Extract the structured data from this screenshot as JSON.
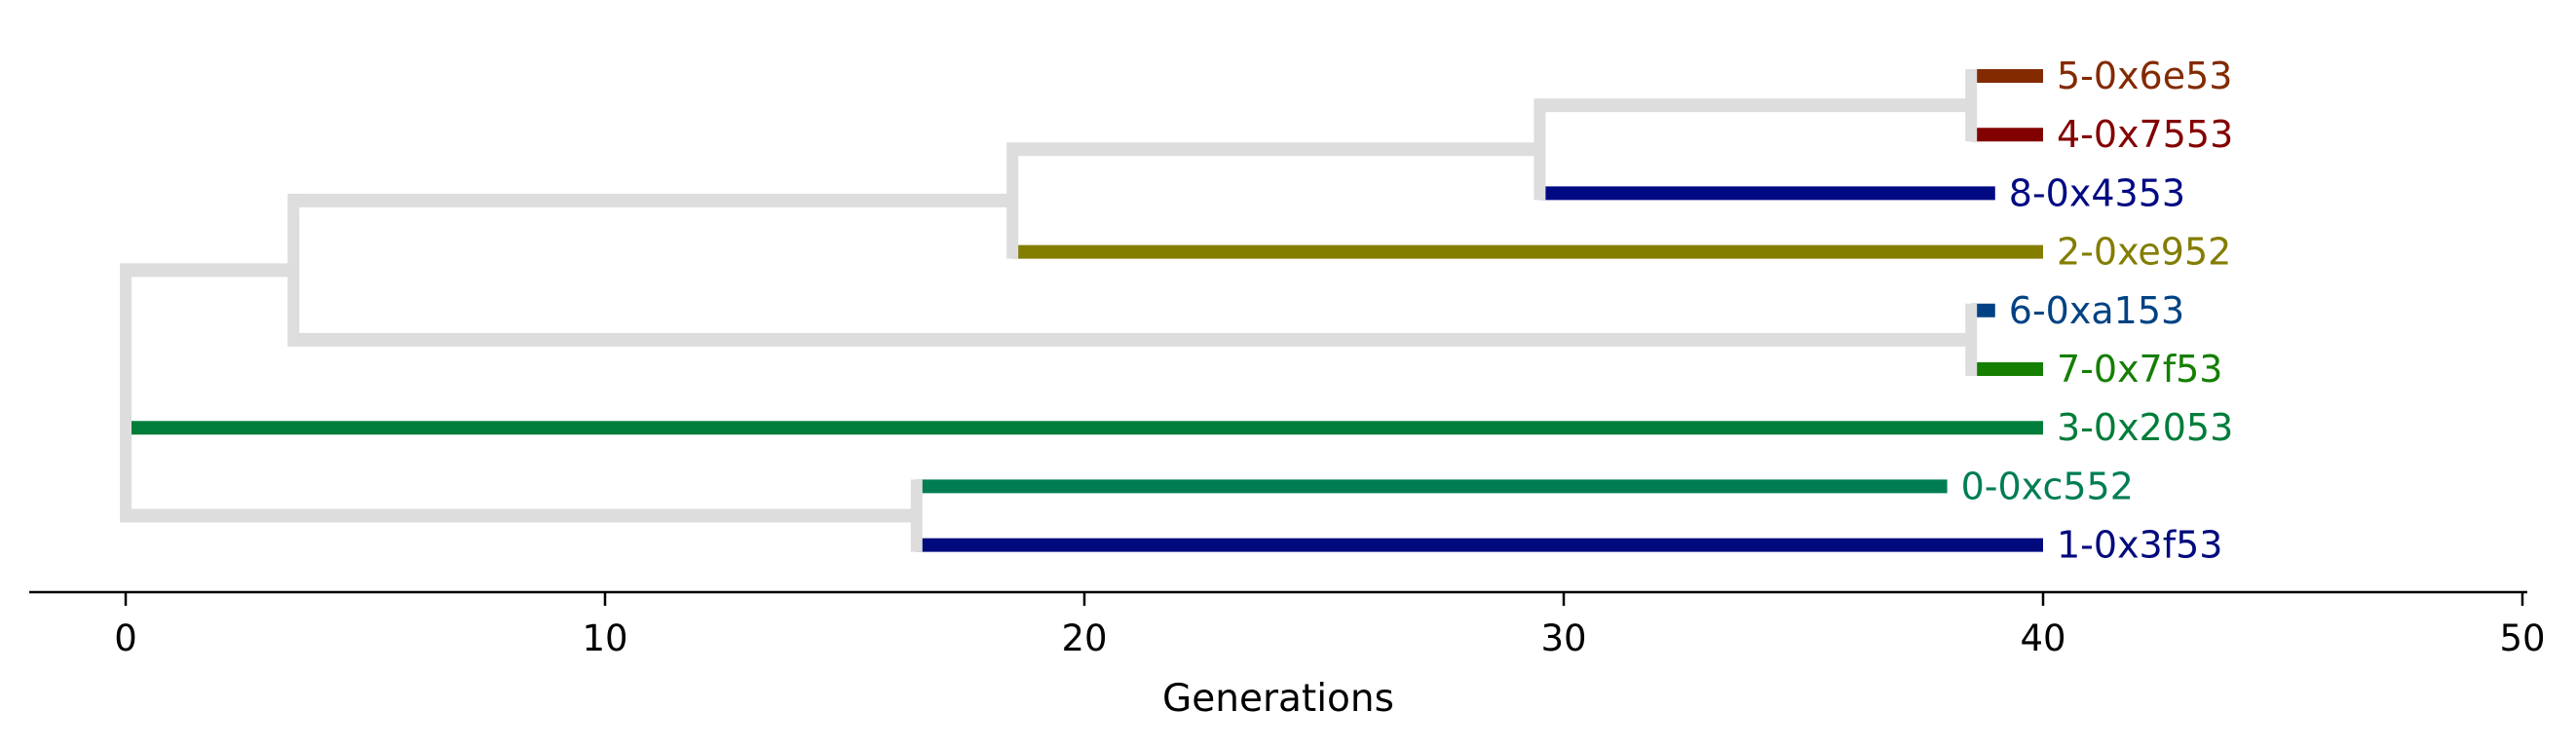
{
  "chart_data": {
    "type": "dendrogram",
    "orientation": "horizontal",
    "xlabel": "Generations",
    "xlim": [
      -2,
      50
    ],
    "xticks": [
      0,
      10,
      20,
      30,
      40,
      50
    ],
    "xtick_labels": [
      "0",
      "10",
      "20",
      "30",
      "40",
      "50"
    ],
    "grid": false,
    "internal_branch_color": "#dddddd",
    "leaves": [
      {
        "label": "5-0x6e53",
        "end": 40.0,
        "color": "#832a00"
      },
      {
        "label": "4-0x7553",
        "end": 40.0,
        "color": "#830000"
      },
      {
        "label": "8-0x4353",
        "end": 39.0,
        "color": "#000a83"
      },
      {
        "label": "2-0xe952",
        "end": 40.0,
        "color": "#837d00"
      },
      {
        "label": "6-0xa153",
        "end": 39.0,
        "color": "#004283"
      },
      {
        "label": "7-0x7f53",
        "end": 40.0,
        "color": "#147f00"
      },
      {
        "label": "3-0x2053",
        "end": 40.0,
        "color": "#007d3a"
      },
      {
        "label": "0-0xc552",
        "end": 38.0,
        "color": "#007d53"
      },
      {
        "label": "1-0x3f53",
        "end": 40.0,
        "color": "#000a7d"
      }
    ],
    "tree": {
      "t": 0.0,
      "children": [
        {
          "t": 3.5,
          "children": [
            {
              "t": 18.5,
              "children": [
                {
                  "t": 29.5,
                  "children": [
                    {
                      "t": 38.5,
                      "children": [
                        {
                          "leaf": 0
                        },
                        {
                          "leaf": 1
                        }
                      ]
                    },
                    {
                      "leaf": 2
                    }
                  ]
                },
                {
                  "leaf": 3
                }
              ]
            },
            {
              "t": 38.5,
              "children": [
                {
                  "leaf": 4
                },
                {
                  "leaf": 5
                }
              ]
            }
          ]
        },
        {
          "leaf": 6
        },
        {
          "t": 16.5,
          "children": [
            {
              "leaf": 7
            },
            {
              "leaf": 8
            }
          ]
        }
      ]
    }
  }
}
